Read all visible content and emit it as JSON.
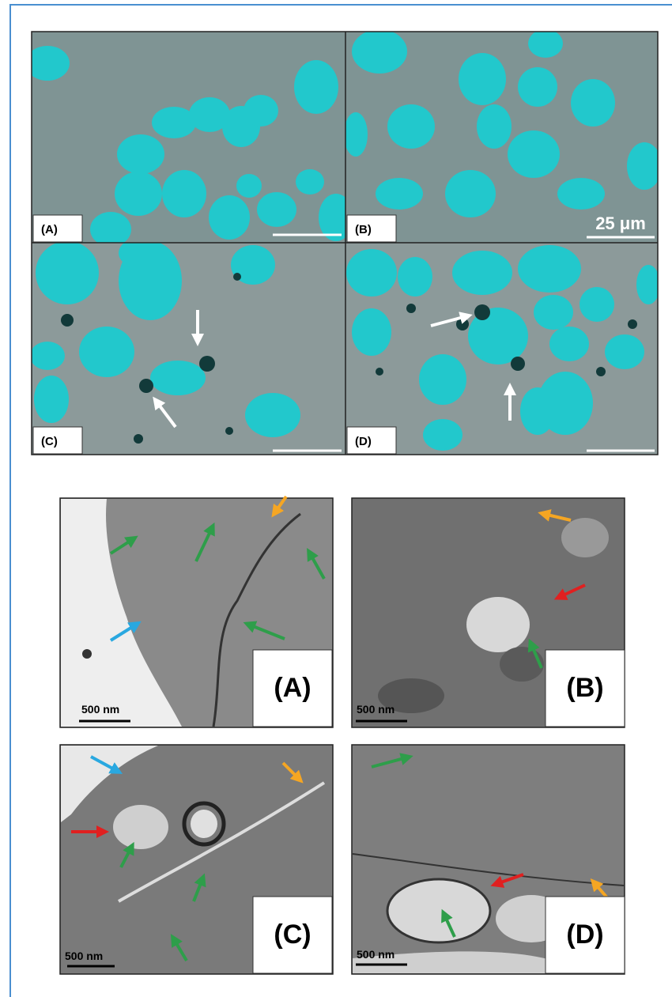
{
  "light_microscopy": {
    "panels": [
      {
        "label": "(A)"
      },
      {
        "label": "(B)"
      },
      {
        "label": "(C)"
      },
      {
        "label": "(D)"
      }
    ],
    "scale_label": "25 μm"
  },
  "electron_microscopy": {
    "panels": [
      {
        "label": "(A)",
        "scale_label": "500 nm"
      },
      {
        "label": "(B)",
        "scale_label": "500 nm"
      },
      {
        "label": "(C)",
        "scale_label": "500 nm"
      },
      {
        "label": "(D)",
        "scale_label": "500 nm"
      }
    ]
  }
}
